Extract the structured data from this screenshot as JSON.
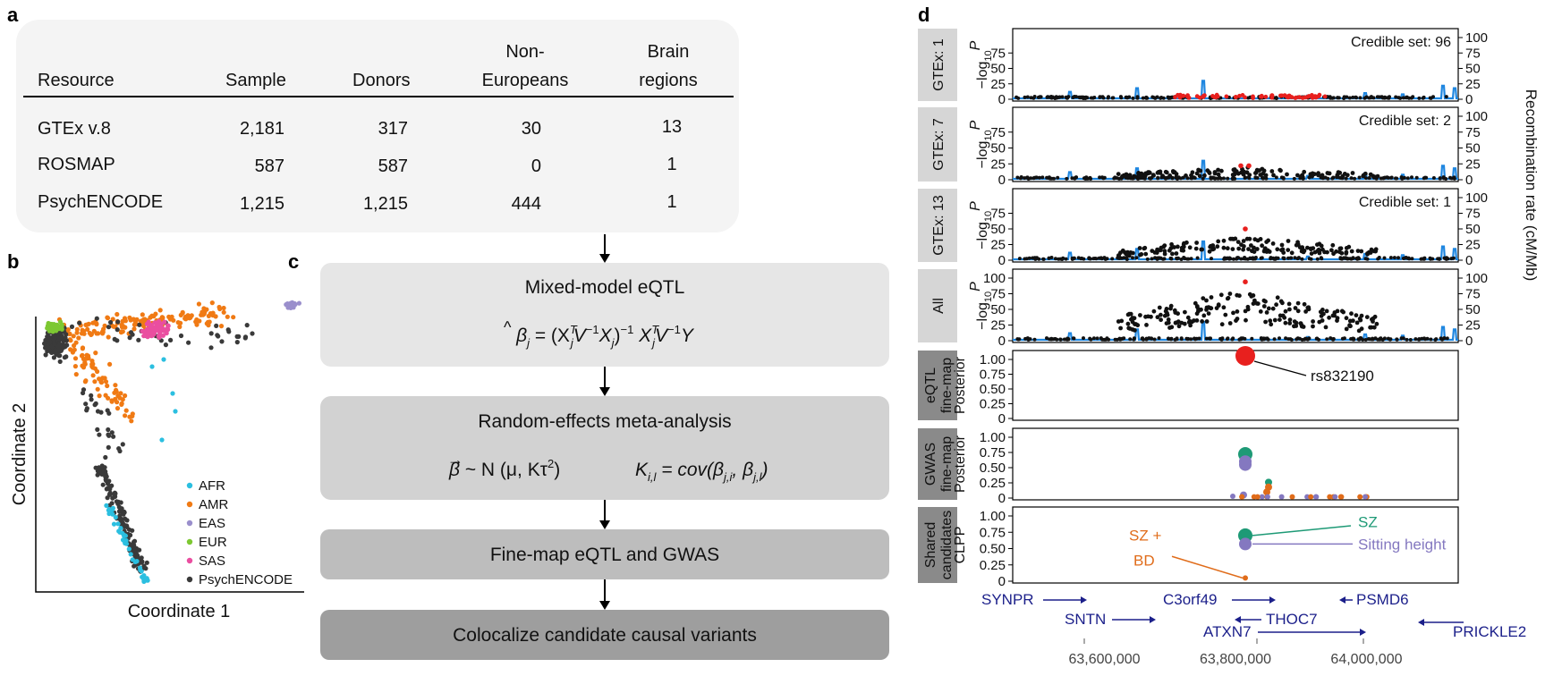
{
  "panels": {
    "a": "a",
    "b": "b",
    "c": "c",
    "d": "d"
  },
  "table": {
    "headers": [
      "Resource",
      "Sample",
      "Donors",
      "Non-\nEuropeans",
      "Brain\nregions"
    ],
    "rows": [
      [
        "GTEx v.8",
        "2,181",
        "317",
        "30",
        "13"
      ],
      [
        "ROSMAP",
        "587",
        "587",
        "0",
        "1"
      ],
      [
        "PsychENCODE",
        "1,215",
        "1,215",
        "444",
        "1"
      ]
    ]
  },
  "scatter": {
    "xlabel": "Coordinate 1",
    "ylabel": "Coordinate 2",
    "legend": [
      {
        "label": "AFR",
        "color": "#2bbfe0"
      },
      {
        "label": "AMR",
        "color": "#f07a14"
      },
      {
        "label": "EAS",
        "color": "#9a8fcc"
      },
      {
        "label": "EUR",
        "color": "#7dc832"
      },
      {
        "label": "SAS",
        "color": "#ea4ea0"
      },
      {
        "label": "PsychENCODE",
        "color": "#3a3a3a"
      }
    ]
  },
  "workflow": {
    "steps": [
      "Mixed-model eQTL",
      "Random-effects meta-analysis",
      "Fine-map eQTL and GWAS",
      "Colocalize candidate causal variants"
    ],
    "colors": [
      "#e6e6e6",
      "#d2d2d2",
      "#bdbdbd",
      "#9e9e9e"
    ],
    "eq1": {
      "beta": "β",
      "hat": "^",
      "sub_j": "j",
      "pre": " = (X",
      "sup_T": "T",
      "mid1": "V",
      "sup_m1": "−1",
      "mid2": "X",
      "close": ")",
      "sup_m1b": "−1",
      "x2": " X",
      "sup_T2": "T",
      "mid3": "V",
      "sup_m1c": "−1",
      "end": "Y"
    },
    "eq2": {
      "arrow": "→",
      "beta": "β",
      "dist": " ~ N (μ, Kτ",
      "sq": "2",
      "close": ")",
      "k": "K",
      "kidx": "i,l",
      "cov": " = cov(",
      "b1": "β",
      "b1idx": "j,i",
      "sep": ", ",
      "b2": "β",
      "b2idx": "j,l",
      "end": ")"
    }
  },
  "locus": {
    "row_labels": [
      "GTEx: 1",
      "GTEx: 7",
      "GTEx: 13",
      "All",
      "eQTL\nfine-map",
      "GWAS\nfine-map",
      "Shared\ncandidates"
    ],
    "ylabel_log": "−log",
    "ylabel_log_sub": "10",
    "ylabel_log_p": "P",
    "ylabel_post": "Posterior",
    "ylabel_clpp": "CLPP",
    "right_axis_label": "Recombination rate (cM/Mb)",
    "credible_sets": [
      "Credible set: 96",
      "Credible set: 2",
      "Credible set: 1",
      ""
    ],
    "log_ticks": [
      "0",
      "25",
      "50",
      "75"
    ],
    "log_ticks_all": [
      "0",
      "25",
      "50",
      "75",
      "100"
    ],
    "rec_ticks": [
      "0",
      "25",
      "50",
      "75",
      "100"
    ],
    "post_ticks": [
      "0",
      "0.25",
      "0.50",
      "0.75",
      "1.00"
    ],
    "snp_label": "rs832190",
    "trait_labels": {
      "sz": "SZ",
      "sitting": "Sitting height",
      "szbd1": "SZ +",
      "szbd2": "BD"
    },
    "colors": {
      "lead": "#e8201e",
      "sz": "#1e9a76",
      "sitting": "#8478c0",
      "bd": "#e06c1a",
      "recomb": "#1e86e0",
      "gene": "#1b1f8a"
    },
    "genes": [
      {
        "name": "SYNPR",
        "dir": "right"
      },
      {
        "name": "SNTN",
        "dir": "right"
      },
      {
        "name": "C3orf49",
        "dir": "right"
      },
      {
        "name": "THOC7",
        "dir": "left"
      },
      {
        "name": "ATXN7",
        "dir": "right"
      },
      {
        "name": "PSMD6",
        "dir": "left"
      },
      {
        "name": "PRICKLE2",
        "dir": "left"
      }
    ],
    "x_ticks": [
      "63,600,000",
      "63,800,000",
      "64,000,000"
    ],
    "x_range": [
      63460000,
      64140000
    ]
  }
}
